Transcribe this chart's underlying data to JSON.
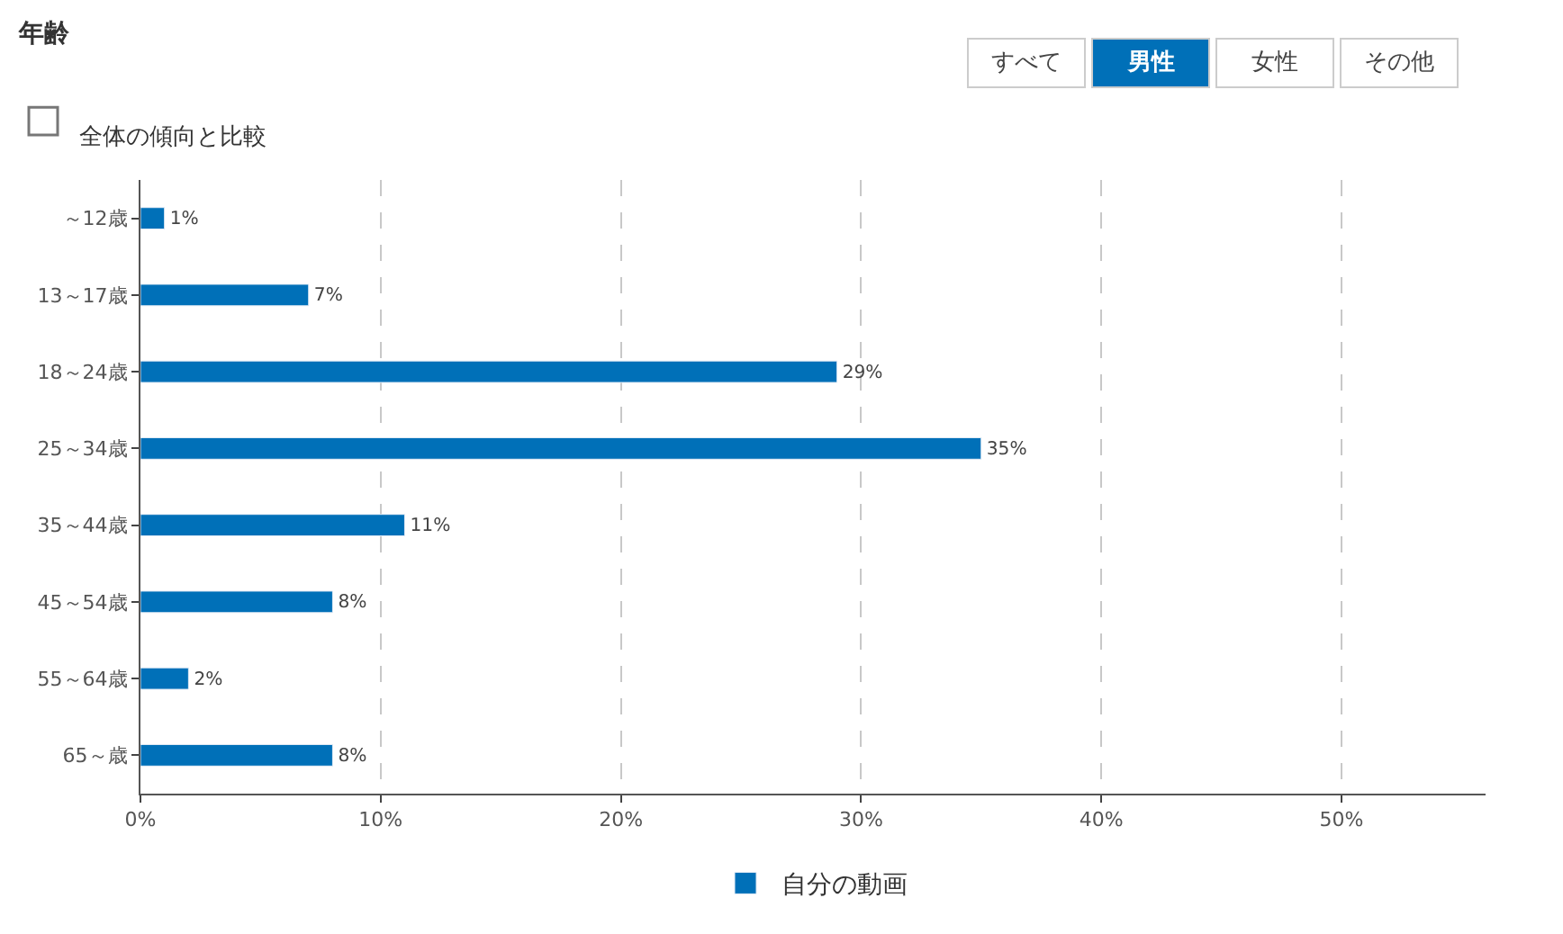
{
  "chart_data": {
    "type": "bar",
    "orientation": "horizontal",
    "title": "年齢",
    "categories": [
      "～12歳",
      "13～17歳",
      "18～24歳",
      "25～34歳",
      "35～44歳",
      "45～54歳",
      "55～64歳",
      "65～歳"
    ],
    "series": [
      {
        "name": "自分の動画",
        "color": "#0070b8",
        "values": [
          1,
          7,
          29,
          35,
          11,
          8,
          2,
          8
        ],
        "value_labels": [
          "1%",
          "7%",
          "29%",
          "35%",
          "11%",
          "8%",
          "2%",
          "8%"
        ]
      }
    ],
    "xlim": [
      0,
      56
    ],
    "xticks": [
      {
        "value": 0,
        "label": "0%"
      },
      {
        "value": 10,
        "label": "10%"
      },
      {
        "value": 20,
        "label": "20%"
      },
      {
        "value": 30,
        "label": "30%"
      },
      {
        "value": 40,
        "label": "40%"
      },
      {
        "value": 50,
        "label": "50%"
      }
    ],
    "grid": "x",
    "legend": "bottom",
    "annotations": [
      "すべて",
      "男性",
      "女性",
      "その他",
      "全体の傾向と比較"
    ]
  }
}
